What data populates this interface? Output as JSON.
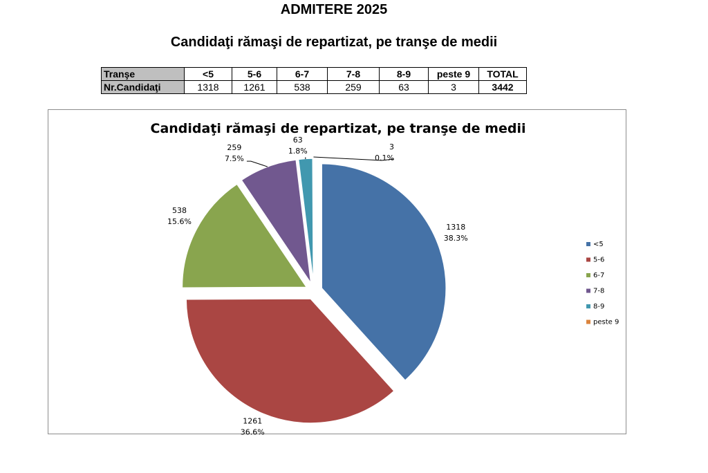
{
  "header": {
    "title": "ADMITERE 2025",
    "subtitle": "Candidaţi rămaşi de repartizat, pe tranşe de medii"
  },
  "table": {
    "row_label": "Tranşe",
    "count_label": "Nr.Candidaţi",
    "columns": [
      "<5",
      "5-6",
      "6-7",
      "7-8",
      "8-9",
      "peste 9"
    ],
    "counts": [
      "1318",
      "1261",
      "538",
      "259",
      "63",
      "3"
    ],
    "total_label": "TOTAL",
    "total_value": "3442"
  },
  "chart_data": {
    "type": "pie",
    "title": "Candidaţi rămaşi de repartizat, pe tranşe de medii",
    "categories": [
      "<5",
      "5-6",
      "6-7",
      "7-8",
      "8-9",
      "peste 9"
    ],
    "values": [
      1318,
      1261,
      538,
      259,
      63,
      3
    ],
    "percent_labels": [
      "38.3%",
      "36.6%",
      "15.6%",
      "7.5%",
      "1.8%",
      "0.1%"
    ],
    "colors": [
      "#4572A7",
      "#AA4643",
      "#89A54E",
      "#71588F",
      "#4198AF",
      "#DB843D"
    ],
    "exploded": true,
    "legend_position": "right"
  }
}
